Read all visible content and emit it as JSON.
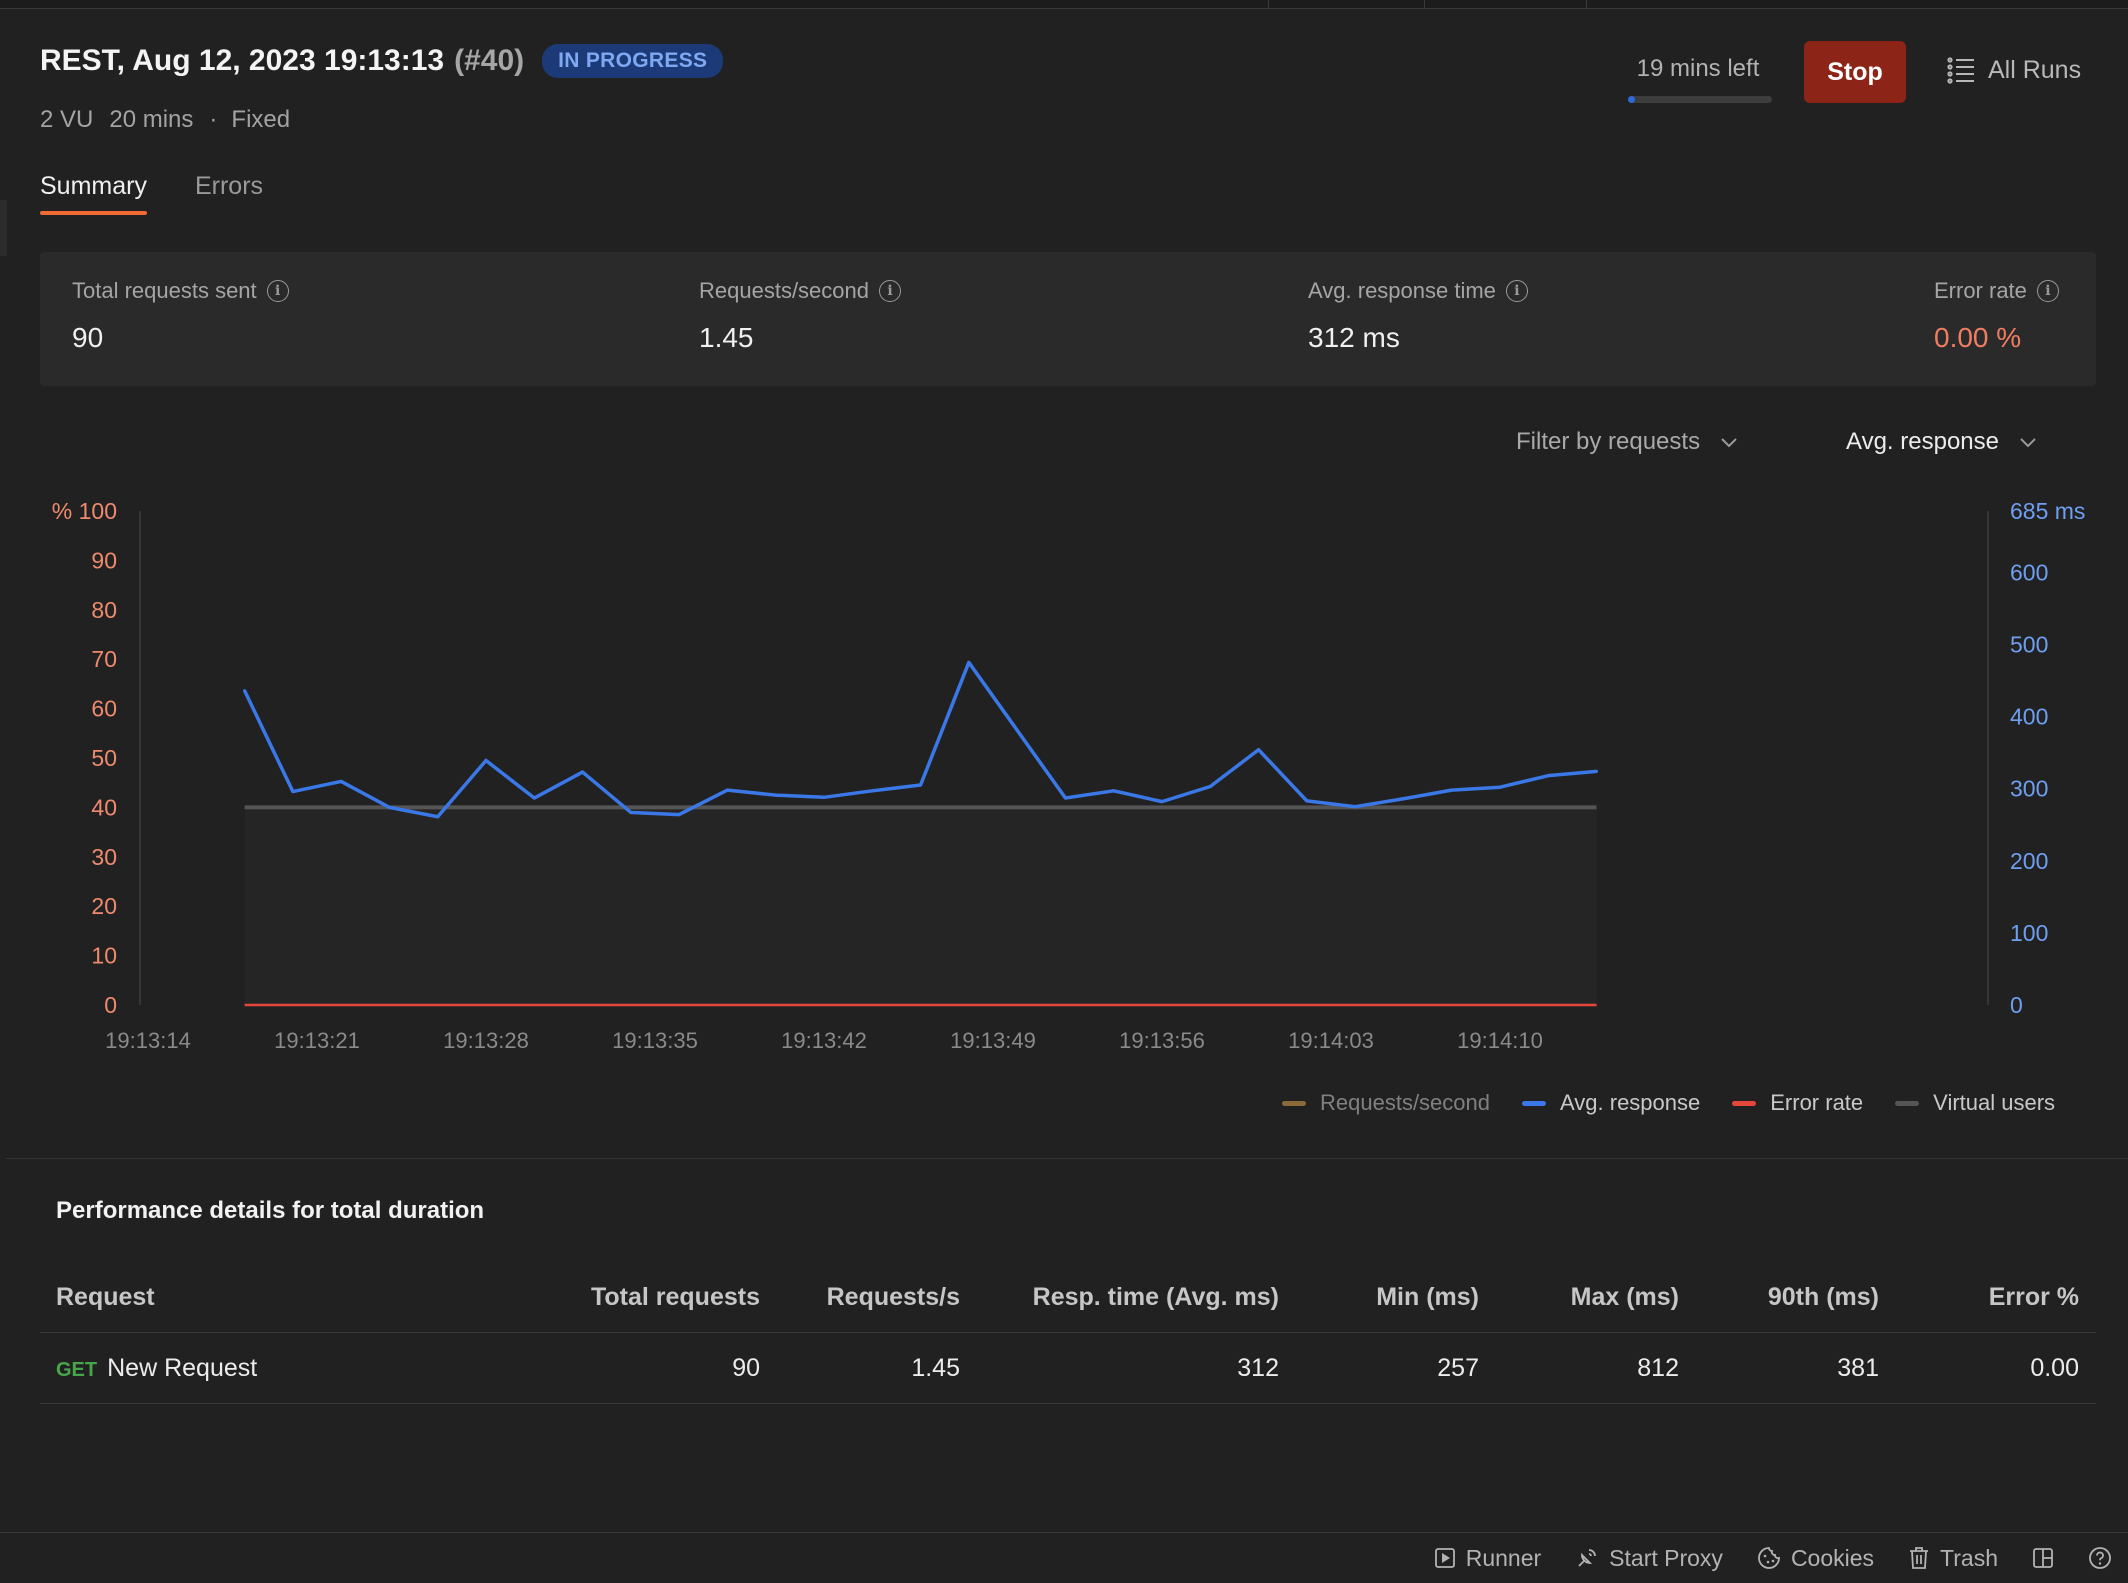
{
  "header": {
    "title": "REST, Aug 12, 2023 19:13:13",
    "run_id": "(#40)",
    "status_badge": "IN PROGRESS",
    "vu": "2 VU",
    "duration": "20 mins",
    "separator": "·",
    "profile": "Fixed",
    "time_left": "19 mins left",
    "time_progress": 0.05,
    "stop_label": "Stop",
    "all_runs_label": "All Runs"
  },
  "tabs": [
    {
      "label": "Summary",
      "active": true
    },
    {
      "label": "Errors",
      "active": false
    }
  ],
  "stats": {
    "total_requests": {
      "label": "Total requests sent",
      "value": "90"
    },
    "rps": {
      "label": "Requests/second",
      "value": "1.45"
    },
    "avg_response": {
      "label": "Avg. response time",
      "value": "312 ms"
    },
    "error_rate": {
      "label": "Error rate",
      "value": "0.00 %"
    }
  },
  "filters": {
    "requests_label": "Filter by requests",
    "metric_label": "Avg. response"
  },
  "colors": {
    "avg_response": "#3b78e7",
    "error_rate": "#e5483a",
    "virtual_users": "#555555",
    "requests_second": "#8a6a38",
    "left_axis": "#ef8a6e",
    "right_axis": "#6f9ff2",
    "stop_button": "#8d2418",
    "accent_tab": "#f06a35"
  },
  "chart_data": {
    "type": "line",
    "left_axis": {
      "ticks": [
        "100",
        "90",
        "80",
        "70",
        "60",
        "50",
        "40",
        "30",
        "20",
        "10",
        "0"
      ],
      "unit": "%",
      "range": [
        0,
        100
      ]
    },
    "right_axis": {
      "ticks": [
        "685 ms",
        "600",
        "500",
        "400",
        "300",
        "200",
        "100",
        "0"
      ],
      "range": [
        0,
        685
      ]
    },
    "x_ticks": [
      "19:13:14",
      "19:13:21",
      "19:13:28",
      "19:13:35",
      "19:13:42",
      "19:13:49",
      "19:13:56",
      "19:14:03",
      "19:14:10"
    ],
    "series": [
      {
        "name": "Avg. response",
        "axis": "right",
        "x": [
          "19:13:18",
          "19:13:20",
          "19:13:22",
          "19:13:24",
          "19:13:26",
          "19:13:28",
          "19:13:30",
          "19:13:32",
          "19:13:34",
          "19:13:36",
          "19:13:38",
          "19:13:40",
          "19:13:42",
          "19:13:44",
          "19:13:46",
          "19:13:48",
          "19:13:50",
          "19:13:52",
          "19:13:54",
          "19:13:56",
          "19:13:58",
          "19:14:00",
          "19:14:02",
          "19:14:04",
          "19:14:06",
          "19:14:08",
          "19:14:10",
          "19:14:12",
          "19:14:14"
        ],
        "values": [
          436,
          296,
          310,
          274,
          261,
          339,
          287,
          323,
          267,
          264,
          298,
          291,
          288,
          297,
          305,
          475,
          381,
          287,
          297,
          282,
          303,
          354,
          283,
          275,
          286,
          298,
          302,
          318,
          324
        ]
      },
      {
        "name": "Virtual users",
        "axis": "left",
        "x": [
          "19:13:18",
          "19:14:14"
        ],
        "values": [
          40,
          40
        ]
      },
      {
        "name": "Error rate",
        "axis": "left",
        "x": [
          "19:13:18",
          "19:14:14"
        ],
        "values": [
          0,
          0
        ]
      },
      {
        "name": "Requests/second",
        "axis": "left",
        "visible": false
      }
    ],
    "legend": [
      "Requests/second",
      "Avg. response",
      "Error rate",
      "Virtual users"
    ],
    "legend_position": "bottom-right",
    "grid": false
  },
  "performance": {
    "title": "Performance details for total duration",
    "columns": [
      "Request",
      "Total requests",
      "Requests/s",
      "Resp. time (Avg. ms)",
      "Min (ms)",
      "Max (ms)",
      "90th (ms)",
      "Error %"
    ],
    "rows": [
      {
        "method": "GET",
        "name": "New Request",
        "total": "90",
        "rps": "1.45",
        "avg": "312",
        "min": "257",
        "max": "812",
        "p90": "381",
        "err": "0.00"
      }
    ]
  },
  "statusbar": {
    "runner": "Runner",
    "proxy": "Start Proxy",
    "cookies": "Cookies",
    "trash": "Trash"
  }
}
